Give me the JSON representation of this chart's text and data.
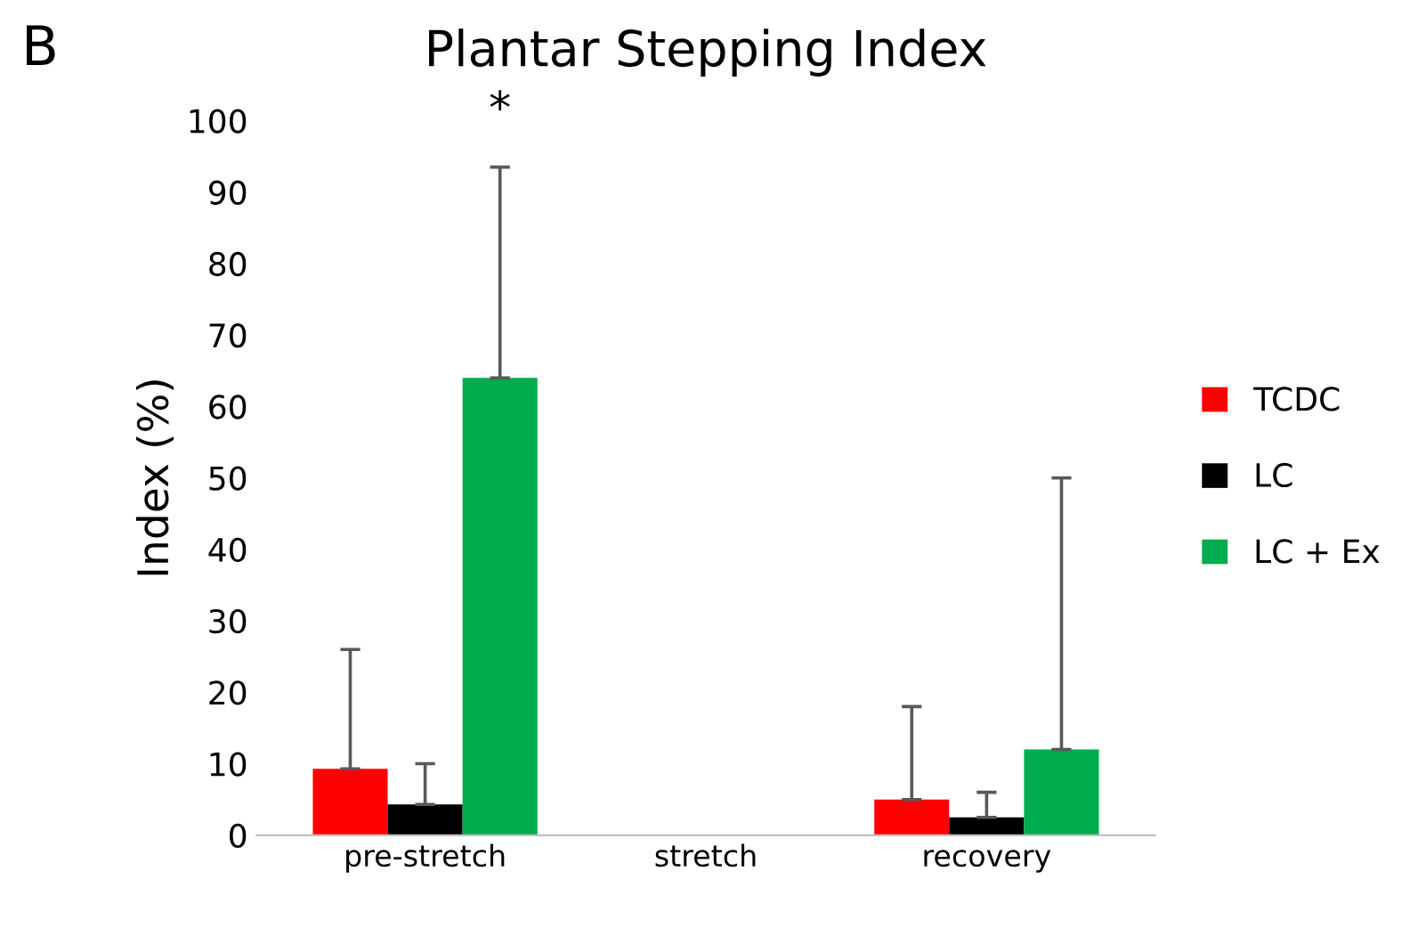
{
  "chart_data": {
    "type": "bar",
    "title": "Plantar Stepping Index",
    "ylabel": "Index (%)",
    "categories": [
      "pre-stretch",
      "stretch",
      "recovery"
    ],
    "series": [
      {
        "name": "TCDC",
        "color": "#ff0000",
        "values": [
          9.3,
          null,
          5
        ],
        "errors": [
          [
            9.3,
            26
          ],
          null,
          [
            5,
            18
          ]
        ]
      },
      {
        "name": "LC",
        "color": "#000000",
        "values": [
          4.3,
          null,
          2.5
        ],
        "errors": [
          [
            4.3,
            10
          ],
          null,
          [
            2.5,
            6
          ]
        ]
      },
      {
        "name": "LC + Ex",
        "color": "#00ad4e",
        "values": [
          64,
          null,
          12
        ],
        "errors": [
          [
            64,
            93.5
          ],
          null,
          [
            12,
            50
          ]
        ]
      }
    ],
    "ylim": [
      0,
      100
    ],
    "yticks": [
      0,
      10,
      20,
      30,
      40,
      50,
      60,
      70,
      80,
      90,
      100
    ],
    "grid": false,
    "legend": "right",
    "annotations": [
      "*",
      "B"
    ]
  }
}
